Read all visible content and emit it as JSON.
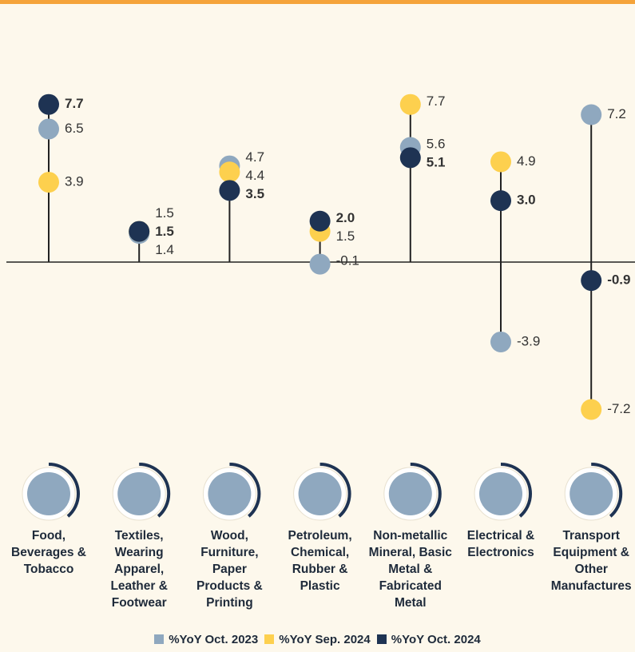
{
  "chart_data": {
    "type": "lollipop",
    "categories": [
      "Food, Beverages & Tobacco",
      "Textiles, Wearing Apparel, Leather & Footwear",
      "Wood, Furniture, Paper Products & Printing",
      "Petroleum, Chemical, Rubber & Plastic",
      "Non-metallic Mineral, Basic Metal & Fabricated Metal",
      "Electrical & Electronics",
      "Transport Equipment & Other Manufactures"
    ],
    "series": [
      {
        "name": "%YoY Oct. 2023",
        "color": "#8fa8bf",
        "values": [
          6.5,
          1.4,
          4.7,
          -0.1,
          5.6,
          -3.9,
          7.2
        ],
        "value_labels": [
          "6.5",
          "1.4",
          "4.7",
          "-0.1",
          "5.6",
          "-3.9",
          "7.2"
        ]
      },
      {
        "name": "%YoY Sep. 2024",
        "color": "#fdd04e",
        "values": [
          3.9,
          1.5,
          4.4,
          1.5,
          7.7,
          4.9,
          -7.2
        ],
        "value_labels": [
          "3.9",
          "1.5",
          "4.4",
          "1.5",
          "7.7",
          "4.9",
          "-7.2"
        ]
      },
      {
        "name": "%YoY Oct. 2024",
        "color": "#1e3353",
        "values": [
          7.7,
          1.5,
          3.5,
          2.0,
          5.1,
          3.0,
          -0.9
        ],
        "value_labels": [
          "7.7",
          "1.5",
          "3.5",
          "2.0",
          "5.1",
          "3.0",
          "-0.9"
        ]
      }
    ],
    "ylim": [
      -8,
      8
    ]
  }
}
